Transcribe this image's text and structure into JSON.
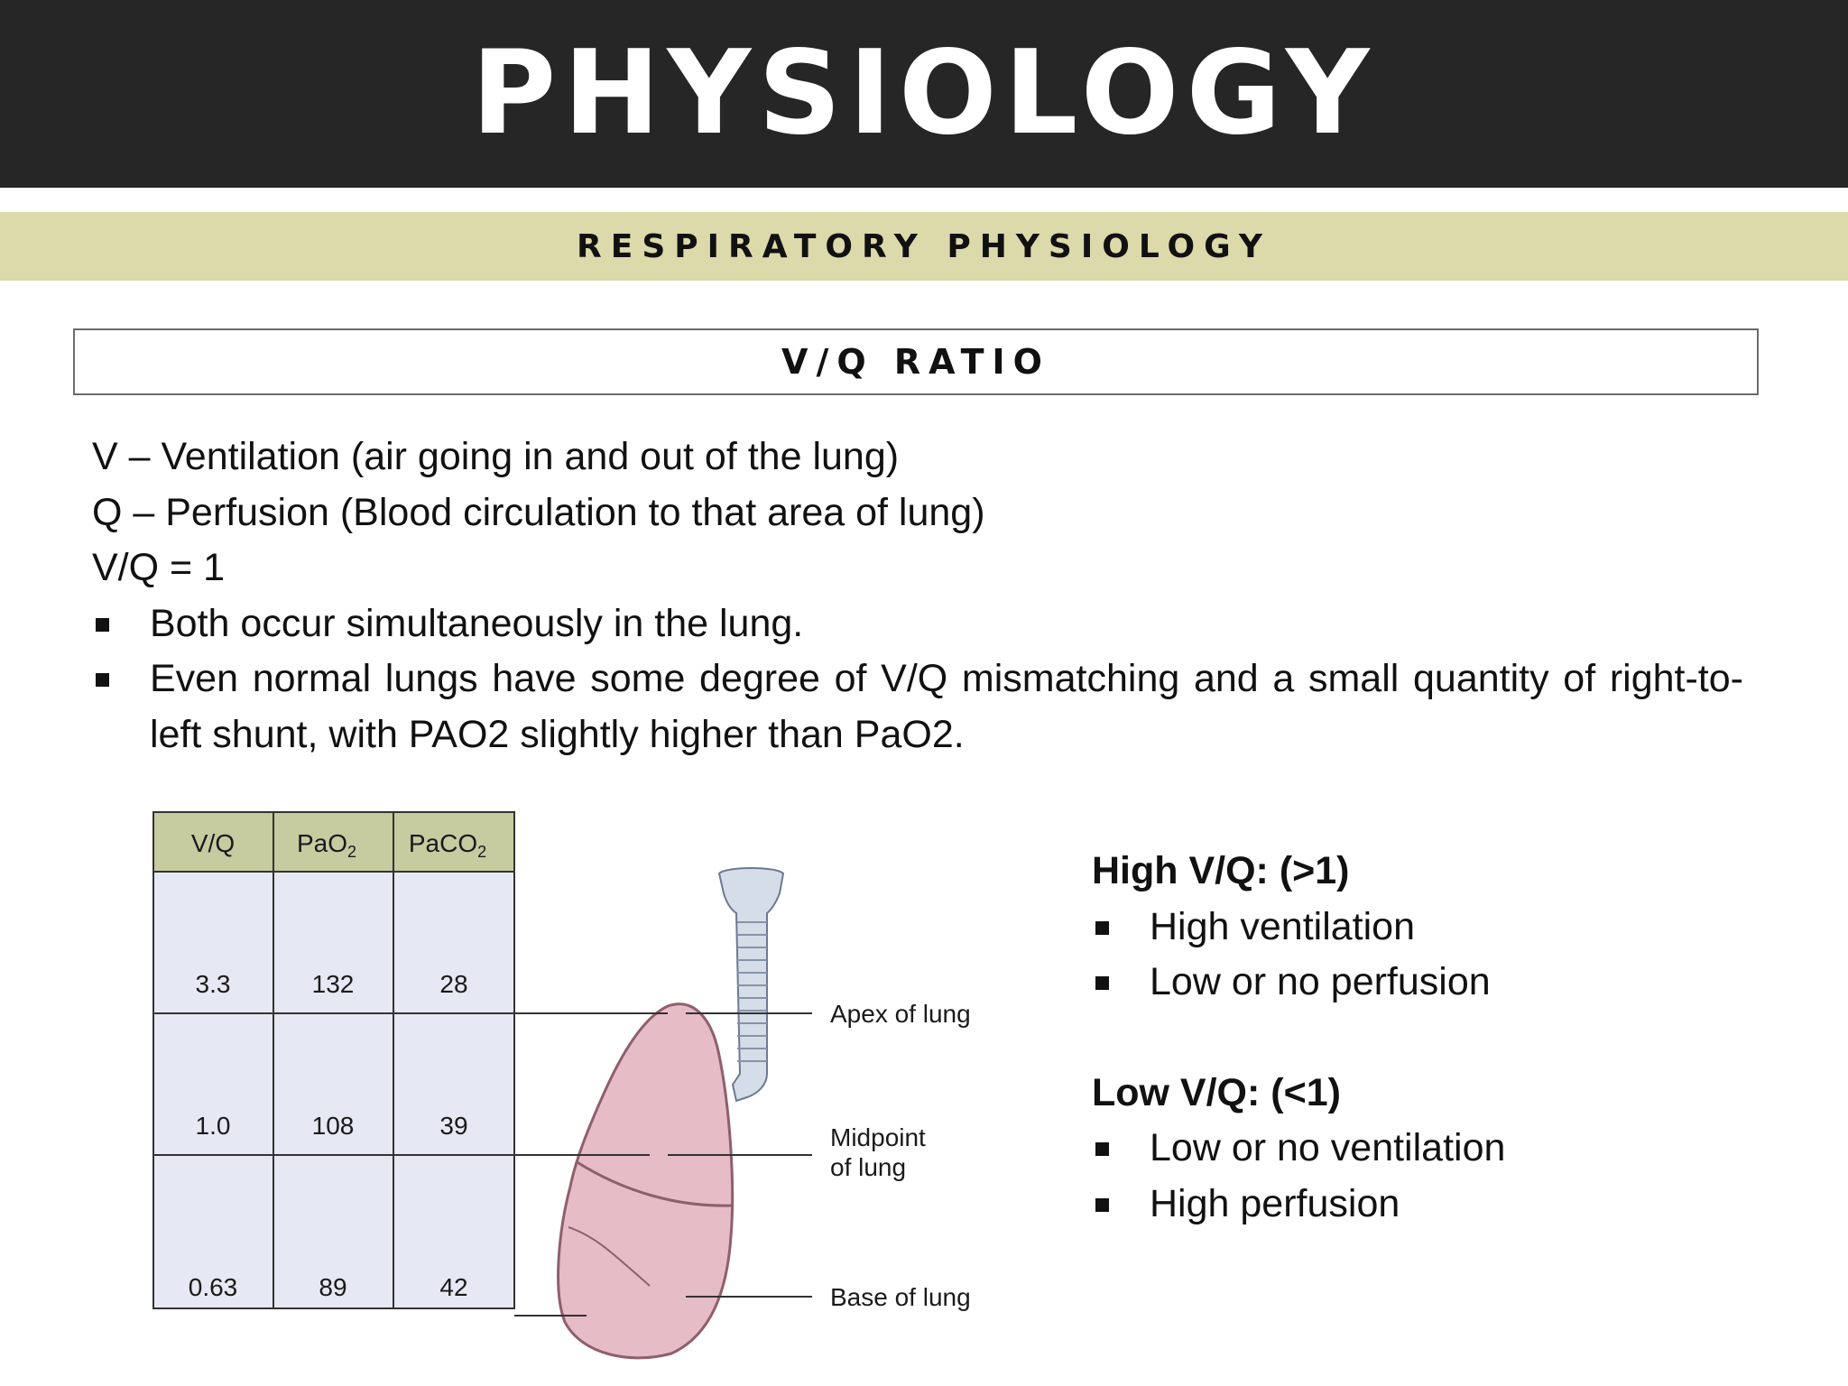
{
  "title": "PHYSIOLOGY",
  "subtitle": "RESPIRATORY PHYSIOLOGY",
  "section": "V/Q RATIO",
  "definitions": {
    "v": "V – Ventilation (air going in and out of the lung)",
    "q": "Q – Perfusion (Blood circulation to that area of lung)",
    "vq": "V/Q = 1",
    "bullets": [
      "Both occur simultaneously in the lung.",
      "Even normal lungs have some degree of V/Q mismatching and a small quantity of right-to-left shunt, with PAO2 slightly higher than PaO2."
    ]
  },
  "table": {
    "headers": {
      "vq": "V/Q",
      "pao2": "PaO",
      "paco2": "PaCO",
      "sub": "2"
    },
    "rows": [
      {
        "vq": "3.3",
        "pao2": "132",
        "paco2": "28"
      },
      {
        "vq": "1.0",
        "pao2": "108",
        "paco2": "39"
      },
      {
        "vq": "0.63",
        "pao2": "89",
        "paco2": "42"
      }
    ]
  },
  "lung_labels": {
    "apex": "Apex of lung",
    "mid_1": "Midpoint",
    "mid_2": "of lung",
    "base": "Base of lung"
  },
  "high": {
    "heading": "High V/Q: (>1)",
    "items": [
      "High ventilation",
      "Low or no perfusion"
    ]
  },
  "low": {
    "heading": "Low V/Q: (<1)",
    "items": [
      "Low or no ventilation",
      "High perfusion"
    ]
  },
  "colors": {
    "title_bg": "#262626",
    "subtitle_bg": "#dcd9ab",
    "table_header_bg": "#c6cba0",
    "table_body_bg": "#e6e8f3",
    "lung_fill": "#e6bcc7",
    "trachea_fill": "#d5dde9"
  }
}
